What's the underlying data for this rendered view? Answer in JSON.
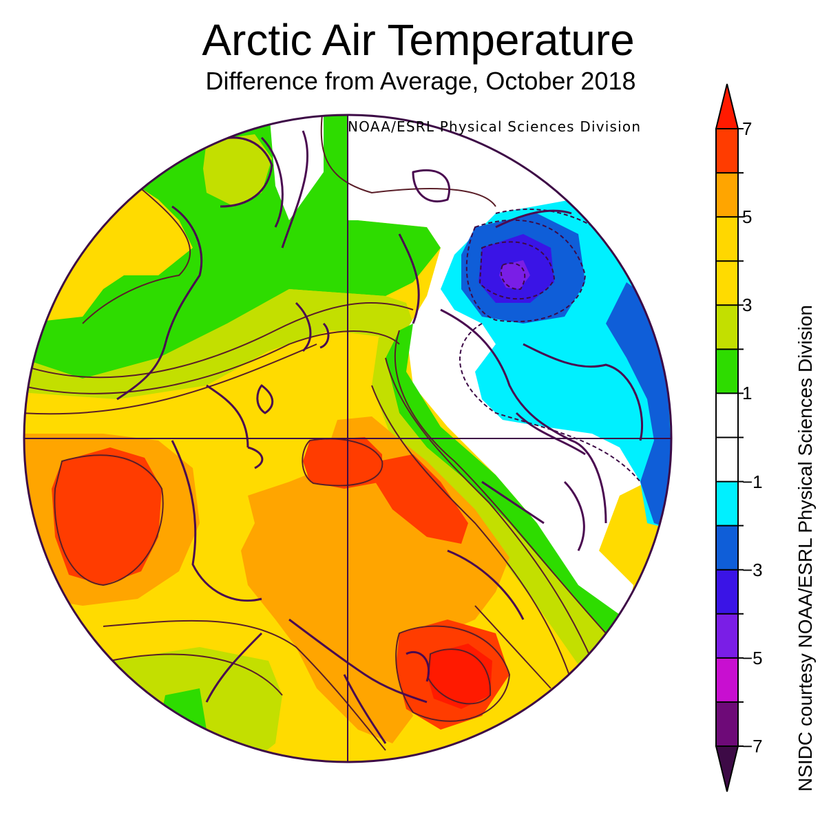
{
  "title": "Arctic Air Temperature",
  "subtitle": "Difference from Average, October 2018",
  "credit_top": "NOAA/ESRL Physical Sciences Division",
  "side_credit": "NSIDC courtesy NOAA/ESRL Physical Sciences Division",
  "colorbar": {
    "labels": [
      "7",
      "5",
      "3",
      "1",
      "−1",
      "−3",
      "−5",
      "−7"
    ],
    "label_values": [
      7,
      5,
      3,
      1,
      -1,
      -3,
      -5,
      -7
    ],
    "bins": [
      {
        "range": [
          7,
          8
        ],
        "color": "#ff1a00"
      },
      {
        "range": [
          6,
          7
        ],
        "color": "#ff3c00"
      },
      {
        "range": [
          5,
          6
        ],
        "color": "#ffa500"
      },
      {
        "range": [
          4,
          5
        ],
        "color": "#ffd700"
      },
      {
        "range": [
          3,
          4
        ],
        "color": "#ffdb00"
      },
      {
        "range": [
          2,
          3
        ],
        "color": "#c3df00"
      },
      {
        "range": [
          1,
          2
        ],
        "color": "#2edc00"
      },
      {
        "range": [
          0,
          1
        ],
        "color": "#ffffff"
      },
      {
        "range": [
          -1,
          0
        ],
        "color": "#ffffff"
      },
      {
        "range": [
          -2,
          -1
        ],
        "color": "#00f0ff"
      },
      {
        "range": [
          -3,
          -2
        ],
        "color": "#0f5ed8"
      },
      {
        "range": [
          -4,
          -3
        ],
        "color": "#3a14e6"
      },
      {
        "range": [
          -5,
          -4
        ],
        "color": "#7a1ee6"
      },
      {
        "range": [
          -6,
          -5
        ],
        "color": "#c80fd0"
      },
      {
        "range": [
          -7,
          -6
        ],
        "color": "#6e0a78"
      },
      {
        "range": [
          -8,
          -7
        ],
        "color": "#3d0a46"
      }
    ]
  },
  "colors": {
    "outline": "#3d0a46",
    "coast": "#4a0a50",
    "contour": "#5a1e28"
  }
}
